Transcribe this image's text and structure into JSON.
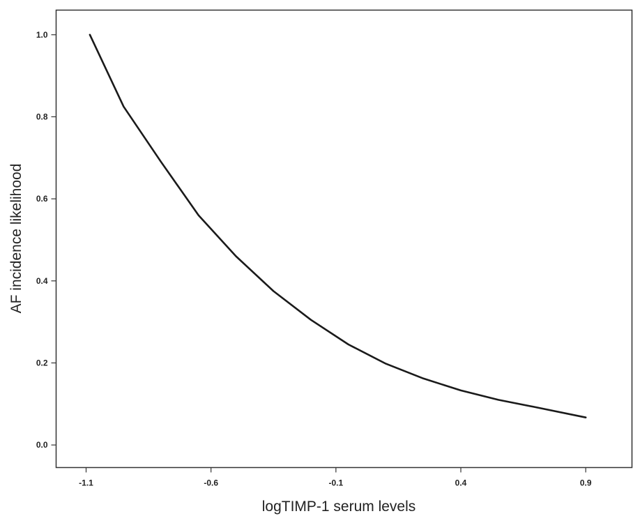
{
  "chart_data": {
    "type": "line",
    "title": "",
    "xlabel": "logTIMP-1 serum levels",
    "ylabel": "AF incidence likelihood",
    "xlim": [
      -1.22,
      1.085
    ],
    "ylim": [
      -0.055,
      1.06
    ],
    "x_ticks": [
      "-1.1",
      "-0.6",
      "-0.1",
      "0.4",
      "0.9"
    ],
    "y_ticks": [
      "0.0",
      "0.2",
      "0.4",
      "0.6",
      "0.8",
      "1.0"
    ],
    "grid": false,
    "legend": "none",
    "series": [
      {
        "color": "#1a1a1a",
        "x": [
          -1.085,
          -0.95,
          -0.8,
          -0.65,
          -0.5,
          -0.35,
          -0.2,
          -0.05,
          0.1,
          0.25,
          0.4,
          0.55,
          0.7,
          0.9
        ],
        "y": [
          1.0,
          0.825,
          0.69,
          0.56,
          0.46,
          0.375,
          0.305,
          0.245,
          0.198,
          0.162,
          0.133,
          0.11,
          0.092,
          0.067
        ]
      }
    ]
  }
}
